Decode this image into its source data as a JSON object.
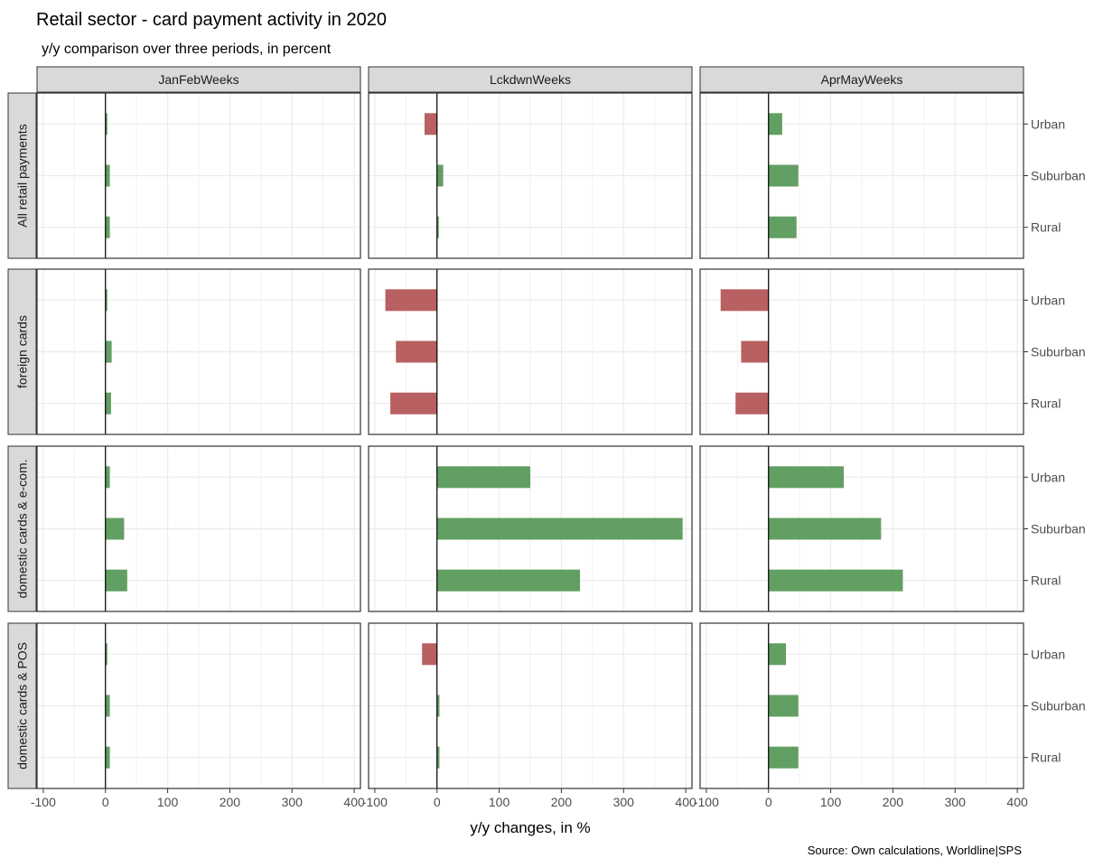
{
  "chart_data": {
    "type": "bar",
    "orientation": "horizontal",
    "title": "Retail sector - card payment activity in 2020",
    "subtitle": "y/y comparison over three periods, in percent",
    "xlabel": "y/y changes, in %",
    "ylabel": "",
    "caption": "Source: Own calculations, Worldline|SPS",
    "xlim": [
      -110,
      410
    ],
    "x_ticks": [
      -100,
      0,
      100,
      200,
      300,
      400
    ],
    "x_tick_labels": [
      "-100",
      "0",
      "100",
      "200",
      "300",
      "400"
    ],
    "categories": [
      "Urban",
      "Suburban",
      "Rural"
    ],
    "facet_columns": [
      "JanFebWeeks",
      "LckdwnWeeks",
      "AprMayWeeks"
    ],
    "facet_rows": [
      "All retail payments",
      "foreign cards",
      "domestic cards & e-com.",
      "domestic cards & POS"
    ],
    "grid": true,
    "colors": {
      "positive": "#5a9a5a",
      "negative": "#b5575a",
      "strip_bg": "#d9d9d9",
      "grid": "#ebebeb"
    },
    "panels": [
      {
        "row": "All retail payments",
        "column": "JanFebWeeks",
        "values": [
          3,
          7,
          7
        ]
      },
      {
        "row": "All retail payments",
        "column": "LckdwnWeeks",
        "values": [
          -20,
          10,
          3
        ]
      },
      {
        "row": "All retail payments",
        "column": "AprMayWeeks",
        "values": [
          22,
          48,
          45
        ]
      },
      {
        "row": "foreign cards",
        "column": "JanFebWeeks",
        "values": [
          3,
          10,
          9
        ]
      },
      {
        "row": "foreign cards",
        "column": "LckdwnWeeks",
        "values": [
          -83,
          -66,
          -75
        ]
      },
      {
        "row": "foreign cards",
        "column": "AprMayWeeks",
        "values": [
          -77,
          -44,
          -53
        ]
      },
      {
        "row": "domestic cards & e-com.",
        "column": "JanFebWeeks",
        "values": [
          7,
          30,
          35
        ]
      },
      {
        "row": "domestic cards & e-com.",
        "column": "LckdwnWeeks",
        "values": [
          150,
          395,
          230
        ]
      },
      {
        "row": "domestic cards & e-com.",
        "column": "AprMayWeeks",
        "values": [
          121,
          181,
          216
        ]
      },
      {
        "row": "domestic cards & POS",
        "column": "JanFebWeeks",
        "values": [
          3,
          7,
          7
        ]
      },
      {
        "row": "domestic cards & POS",
        "column": "LckdwnWeeks",
        "values": [
          -24,
          4,
          4
        ]
      },
      {
        "row": "domestic cards & POS",
        "column": "AprMayWeeks",
        "values": [
          28,
          48,
          48
        ]
      }
    ]
  }
}
